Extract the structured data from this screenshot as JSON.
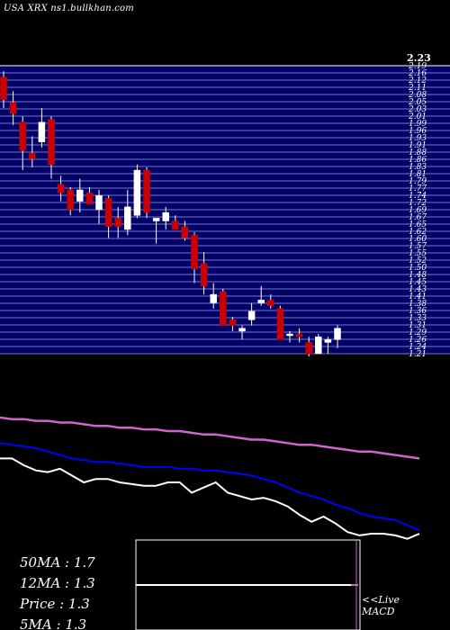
{
  "header": {
    "site_label": "USA XRX  ns1.bullkhan.com"
  },
  "price_axis": {
    "high_label": "2.23",
    "tick_labels": [
      "2.19",
      "2.16",
      "2.12",
      "2.11",
      "2.08",
      "2.05",
      "2.03",
      "2.01",
      "1.99",
      "1.96",
      "1.93",
      "1.91",
      "1.88",
      "1.86",
      "1.83",
      "1.81",
      "1.79",
      "1.77",
      "1.74",
      "1.72",
      "1.69",
      "1.67",
      "1.65",
      "1.62",
      "1.60",
      "1.57",
      "1.55",
      "1.52",
      "1.50",
      "1.48",
      "1.45",
      "1.43",
      "1.41",
      "1.38",
      "1.36",
      "1.33",
      "1.31",
      "1.29",
      "1.26",
      "1.24",
      "1.21"
    ]
  },
  "ma_panel": {
    "ma50": "50MA : 1.7",
    "ma12": "12MA : 1.3",
    "price": "Price   : 1.3",
    "ma5": "5MA : 1.3"
  },
  "macd_panel": {
    "live_label": "<<Live",
    "macd_label": "MACD"
  },
  "colors": {
    "background": "#000000",
    "grid_band": "#000066",
    "grid_line": "#7777cc",
    "bull_candle": "#ffffff",
    "bear_candle": "#cc0000",
    "ma50_line": "#cc66cc",
    "ma12_line": "#0000ff",
    "price_line": "#ffffff"
  },
  "chart_data": {
    "type": "candlestick",
    "title": "USA XRX",
    "y_range": [
      1.21,
      2.23
    ],
    "candles": [
      {
        "o": 2.19,
        "h": 2.21,
        "l": 2.08,
        "c": 2.11
      },
      {
        "o": 2.1,
        "h": 2.14,
        "l": 2.02,
        "c": 2.06
      },
      {
        "o": 2.03,
        "h": 2.05,
        "l": 1.86,
        "c": 1.93
      },
      {
        "o": 1.92,
        "h": 1.98,
        "l": 1.87,
        "c": 1.9
      },
      {
        "o": 1.96,
        "h": 2.08,
        "l": 1.94,
        "c": 2.03
      },
      {
        "o": 2.04,
        "h": 2.05,
        "l": 1.83,
        "c": 1.88
      },
      {
        "o": 1.81,
        "h": 1.84,
        "l": 1.75,
        "c": 1.78
      },
      {
        "o": 1.79,
        "h": 1.8,
        "l": 1.7,
        "c": 1.72
      },
      {
        "o": 1.75,
        "h": 1.83,
        "l": 1.71,
        "c": 1.79
      },
      {
        "o": 1.78,
        "h": 1.8,
        "l": 1.75,
        "c": 1.74
      },
      {
        "o": 1.72,
        "h": 1.79,
        "l": 1.67,
        "c": 1.77
      },
      {
        "o": 1.76,
        "h": 1.77,
        "l": 1.62,
        "c": 1.66
      },
      {
        "o": 1.69,
        "h": 1.73,
        "l": 1.62,
        "c": 1.66
      },
      {
        "o": 1.65,
        "h": 1.79,
        "l": 1.63,
        "c": 1.73
      },
      {
        "o": 1.7,
        "h": 1.88,
        "l": 1.69,
        "c": 1.86
      },
      {
        "o": 1.86,
        "h": 1.87,
        "l": 1.69,
        "c": 1.71
      },
      {
        "o": 1.68,
        "h": 1.69,
        "l": 1.6,
        "c": 1.69
      },
      {
        "o": 1.68,
        "h": 1.73,
        "l": 1.65,
        "c": 1.71
      },
      {
        "o": 1.68,
        "h": 1.7,
        "l": 1.66,
        "c": 1.65
      },
      {
        "o": 1.66,
        "h": 1.68,
        "l": 1.61,
        "c": 1.62
      },
      {
        "o": 1.63,
        "h": 1.64,
        "l": 1.46,
        "c": 1.51
      },
      {
        "o": 1.53,
        "h": 1.57,
        "l": 1.42,
        "c": 1.45
      },
      {
        "o": 1.39,
        "h": 1.46,
        "l": 1.37,
        "c": 1.42
      },
      {
        "o": 1.43,
        "h": 1.44,
        "l": 1.32,
        "c": 1.31
      },
      {
        "o": 1.33,
        "h": 1.34,
        "l": 1.29,
        "c": 1.31
      },
      {
        "o": 1.29,
        "h": 1.31,
        "l": 1.26,
        "c": 1.3
      },
      {
        "o": 1.33,
        "h": 1.39,
        "l": 1.31,
        "c": 1.36
      },
      {
        "o": 1.39,
        "h": 1.45,
        "l": 1.38,
        "c": 1.4
      },
      {
        "o": 1.4,
        "h": 1.42,
        "l": 1.37,
        "c": 1.38
      },
      {
        "o": 1.37,
        "h": 1.38,
        "l": 1.26,
        "c": 1.26
      },
      {
        "o": 1.28,
        "h": 1.29,
        "l": 1.25,
        "c": 1.28
      },
      {
        "o": 1.28,
        "h": 1.3,
        "l": 1.25,
        "c": 1.27
      },
      {
        "o": 1.25,
        "h": 1.27,
        "l": 1.2,
        "c": 1.21
      },
      {
        "o": 1.21,
        "h": 1.28,
        "l": 1.21,
        "c": 1.27
      },
      {
        "o": 1.25,
        "h": 1.27,
        "l": 1.21,
        "c": 1.26
      },
      {
        "o": 1.26,
        "h": 1.31,
        "l": 1.23,
        "c": 1.3
      }
    ],
    "ma50": [
      1.98,
      1.97,
      1.97,
      1.96,
      1.96,
      1.95,
      1.95,
      1.94,
      1.93,
      1.93,
      1.92,
      1.92,
      1.91,
      1.91,
      1.9,
      1.9,
      1.89,
      1.88,
      1.88,
      1.87,
      1.86,
      1.85,
      1.85,
      1.84,
      1.83,
      1.82,
      1.82,
      1.81,
      1.8,
      1.79,
      1.78,
      1.78,
      1.77,
      1.76,
      1.75,
      1.74
    ],
    "ma12": [
      1.83,
      1.82,
      1.81,
      1.8,
      1.78,
      1.76,
      1.74,
      1.73,
      1.72,
      1.72,
      1.71,
      1.7,
      1.69,
      1.69,
      1.69,
      1.68,
      1.68,
      1.67,
      1.67,
      1.66,
      1.65,
      1.64,
      1.62,
      1.6,
      1.57,
      1.54,
      1.52,
      1.5,
      1.47,
      1.45,
      1.42,
      1.4,
      1.39,
      1.38,
      1.35,
      1.32
    ],
    "price": [
      1.74,
      1.74,
      1.7,
      1.67,
      1.66,
      1.68,
      1.64,
      1.6,
      1.62,
      1.62,
      1.6,
      1.59,
      1.58,
      1.58,
      1.6,
      1.6,
      1.54,
      1.57,
      1.6,
      1.54,
      1.52,
      1.5,
      1.51,
      1.49,
      1.46,
      1.41,
      1.37,
      1.4,
      1.36,
      1.31,
      1.29,
      1.3,
      1.3,
      1.29,
      1.27,
      1.3
    ],
    "macd_panel": {
      "has_zero_line": true
    }
  }
}
